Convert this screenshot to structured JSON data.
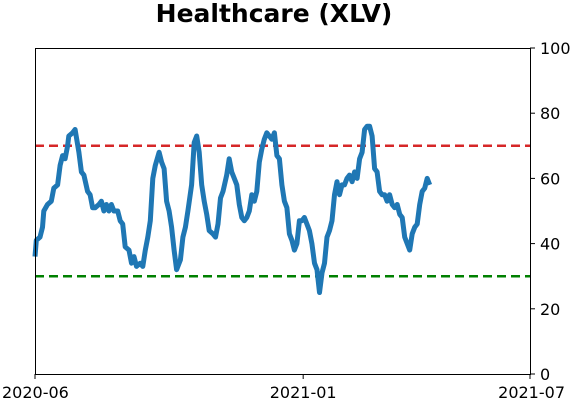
{
  "chart_data": {
    "type": "line",
    "title": "Healthcare (XLV)",
    "xlabel": "",
    "ylabel": "",
    "x_ticks": [
      "2020-06",
      "2021-01",
      "2021-07"
    ],
    "ylim": [
      0,
      100
    ],
    "y_ticks": [
      0,
      20,
      40,
      60,
      80,
      100
    ],
    "y_axis_side": "right",
    "grid": false,
    "reference_lines": [
      {
        "y": 70,
        "color": "#d62728",
        "style": "dashed"
      },
      {
        "y": 30,
        "color": "#008000",
        "style": "dashed"
      }
    ],
    "series": [
      {
        "color": "#1f77b4",
        "points": [
          [
            "2020-06-01",
            36
          ],
          [
            "2020-06-02",
            41
          ],
          [
            "2020-06-05",
            42
          ],
          [
            "2020-06-07",
            45
          ],
          [
            "2020-06-08",
            50
          ],
          [
            "2020-06-11",
            52
          ],
          [
            "2020-06-14",
            53
          ],
          [
            "2020-06-16",
            57
          ],
          [
            "2020-06-19",
            58
          ],
          [
            "2020-06-21",
            64
          ],
          [
            "2020-06-23",
            67
          ],
          [
            "2020-06-25",
            66
          ],
          [
            "2020-06-27",
            70
          ],
          [
            "2020-06-28",
            73
          ],
          [
            "2020-07-01",
            74
          ],
          [
            "2020-07-03",
            75
          ],
          [
            "2020-07-06",
            68
          ],
          [
            "2020-07-08",
            62
          ],
          [
            "2020-07-10",
            61
          ],
          [
            "2020-07-13",
            56
          ],
          [
            "2020-07-15",
            55
          ],
          [
            "2020-07-17",
            51
          ],
          [
            "2020-07-19",
            51
          ],
          [
            "2020-07-22",
            52
          ],
          [
            "2020-07-24",
            53
          ],
          [
            "2020-07-26",
            50
          ],
          [
            "2020-07-28",
            52
          ],
          [
            "2020-07-30",
            50
          ],
          [
            "2020-08-01",
            52
          ],
          [
            "2020-08-03",
            50
          ],
          [
            "2020-08-06",
            50
          ],
          [
            "2020-08-08",
            47
          ],
          [
            "2020-08-10",
            46
          ],
          [
            "2020-08-12",
            39
          ],
          [
            "2020-08-15",
            38
          ],
          [
            "2020-08-17",
            34
          ],
          [
            "2020-08-19",
            36
          ],
          [
            "2020-08-21",
            33
          ],
          [
            "2020-08-24",
            34
          ],
          [
            "2020-08-26",
            33
          ],
          [
            "2020-08-28",
            38
          ],
          [
            "2020-08-30",
            42
          ],
          [
            "2020-09-01",
            47
          ],
          [
            "2020-09-03",
            60
          ],
          [
            "2020-09-05",
            64
          ],
          [
            "2020-09-08",
            68
          ],
          [
            "2020-09-10",
            65
          ],
          [
            "2020-09-12",
            63
          ],
          [
            "2020-09-14",
            53
          ],
          [
            "2020-09-16",
            50
          ],
          [
            "2020-09-18",
            45
          ],
          [
            "2020-09-20",
            38
          ],
          [
            "2020-09-22",
            32
          ],
          [
            "2020-09-25",
            35
          ],
          [
            "2020-09-27",
            42
          ],
          [
            "2020-09-29",
            45
          ],
          [
            "2020-10-01",
            50
          ],
          [
            "2020-10-04",
            58
          ],
          [
            "2020-10-06",
            71
          ],
          [
            "2020-10-08",
            73
          ],
          [
            "2020-10-10",
            68
          ],
          [
            "2020-10-12",
            58
          ],
          [
            "2020-10-14",
            53
          ],
          [
            "2020-10-16",
            49
          ],
          [
            "2020-10-18",
            44
          ],
          [
            "2020-10-21",
            43
          ],
          [
            "2020-10-23",
            42
          ],
          [
            "2020-10-25",
            46
          ],
          [
            "2020-10-27",
            54
          ],
          [
            "2020-10-29",
            56
          ],
          [
            "2020-11-01",
            61
          ],
          [
            "2020-11-03",
            66
          ],
          [
            "2020-11-05",
            62
          ],
          [
            "2020-11-07",
            60
          ],
          [
            "2020-11-09",
            58
          ],
          [
            "2020-11-11",
            52
          ],
          [
            "2020-11-13",
            48
          ],
          [
            "2020-11-15",
            47
          ],
          [
            "2020-11-17",
            48
          ],
          [
            "2020-11-19",
            50
          ],
          [
            "2020-11-21",
            55
          ],
          [
            "2020-11-23",
            53
          ],
          [
            "2020-11-25",
            56
          ],
          [
            "2020-11-27",
            65
          ],
          [
            "2020-11-29",
            69
          ],
          [
            "2020-12-01",
            72
          ],
          [
            "2020-12-03",
            74
          ],
          [
            "2020-12-05",
            73
          ],
          [
            "2020-12-07",
            72
          ],
          [
            "2020-12-09",
            74
          ],
          [
            "2020-12-11",
            67
          ],
          [
            "2020-12-13",
            66
          ],
          [
            "2020-12-15",
            58
          ],
          [
            "2020-12-17",
            53
          ],
          [
            "2020-12-19",
            51
          ],
          [
            "2020-12-21",
            43
          ],
          [
            "2020-12-23",
            41
          ],
          [
            "2020-12-25",
            38
          ],
          [
            "2020-12-27",
            40
          ],
          [
            "2020-12-29",
            47
          ],
          [
            "2020-12-31",
            47
          ],
          [
            "2021-01-02",
            48
          ],
          [
            "2021-01-04",
            46
          ],
          [
            "2021-01-06",
            44
          ],
          [
            "2021-01-08",
            40
          ],
          [
            "2021-01-10",
            34
          ],
          [
            "2021-01-12",
            32
          ],
          [
            "2021-01-14",
            25
          ],
          [
            "2021-01-16",
            31
          ],
          [
            "2021-01-18",
            34
          ],
          [
            "2021-01-20",
            42
          ],
          [
            "2021-01-22",
            44
          ],
          [
            "2021-01-24",
            47
          ],
          [
            "2021-01-26",
            55
          ],
          [
            "2021-01-28",
            59
          ],
          [
            "2021-01-30",
            55
          ],
          [
            "2021-02-01",
            58
          ],
          [
            "2021-02-03",
            58
          ],
          [
            "2021-02-05",
            60
          ],
          [
            "2021-02-07",
            61
          ],
          [
            "2021-02-09",
            59
          ],
          [
            "2021-02-11",
            62
          ],
          [
            "2021-02-13",
            60
          ],
          [
            "2021-02-15",
            66
          ],
          [
            "2021-02-17",
            68
          ],
          [
            "2021-02-19",
            75
          ],
          [
            "2021-02-21",
            76
          ],
          [
            "2021-02-23",
            76
          ],
          [
            "2021-02-25",
            73
          ],
          [
            "2021-02-27",
            63
          ],
          [
            "2021-03-01",
            62
          ],
          [
            "2021-03-03",
            56
          ],
          [
            "2021-03-05",
            55
          ],
          [
            "2021-03-07",
            55
          ],
          [
            "2021-03-09",
            53
          ],
          [
            "2021-03-11",
            55
          ],
          [
            "2021-03-13",
            52
          ],
          [
            "2021-03-15",
            51
          ],
          [
            "2021-03-17",
            52
          ],
          [
            "2021-03-19",
            49
          ],
          [
            "2021-03-21",
            48
          ],
          [
            "2021-03-23",
            42
          ],
          [
            "2021-03-25",
            40
          ],
          [
            "2021-03-27",
            38
          ],
          [
            "2021-03-29",
            43
          ],
          [
            "2021-03-31",
            45
          ],
          [
            "2021-04-02",
            46
          ],
          [
            "2021-04-04",
            52
          ],
          [
            "2021-04-06",
            56
          ],
          [
            "2021-04-08",
            57
          ],
          [
            "2021-04-10",
            60
          ],
          [
            "2021-04-12",
            58
          ]
        ]
      }
    ]
  }
}
